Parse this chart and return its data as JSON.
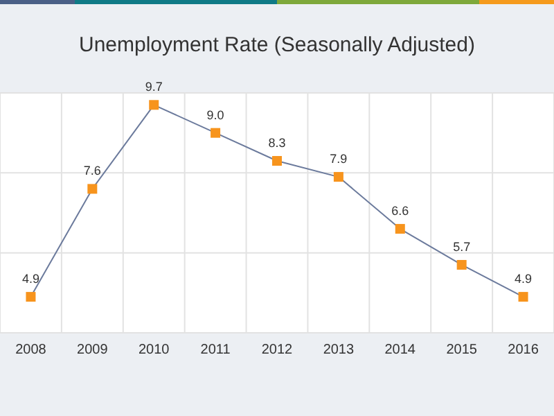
{
  "chart_data": {
    "type": "line",
    "title": "Unemployment Rate (Seasonally Adjusted)",
    "categories": [
      "2008",
      "2009",
      "2010",
      "2011",
      "2012",
      "2013",
      "2014",
      "2015",
      "2016"
    ],
    "series": [
      {
        "color": "#6b7a9c",
        "values": [
          4.9,
          7.6,
          9.7,
          9.0,
          8.3,
          7.9,
          6.6,
          5.7,
          4.9
        ],
        "value_labels": [
          "4.9",
          "7.6",
          "9.7",
          "9.0",
          "8.3",
          "7.9",
          "6.6",
          "5.7",
          "4.9"
        ]
      }
    ],
    "ylim": [
      4,
      10
    ],
    "yticks": [
      4,
      6,
      8,
      10
    ],
    "tick_labels": "x",
    "grid": true,
    "marker": "square",
    "line_style": "solid",
    "legend": false
  }
}
